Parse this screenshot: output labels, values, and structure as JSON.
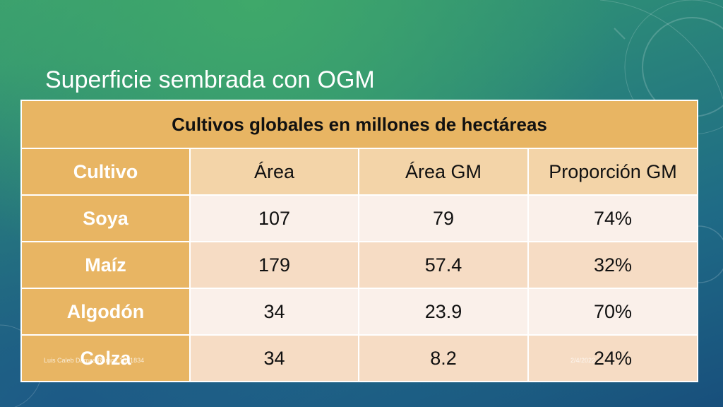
{
  "slide": {
    "title": "Superficie sembrada con OGM",
    "footer_left": "Luis Caleb Damas Ramos 1671834",
    "footer_right": "2/4/2022"
  },
  "table": {
    "caption": "Cultivos globales en millones de hectáreas",
    "headers": [
      "Cultivo",
      "Área",
      "Área GM",
      "Proporción GM"
    ],
    "rows": [
      {
        "crop": "Soya",
        "area": "107",
        "area_gm": "79",
        "proportion": "74%"
      },
      {
        "crop": "Maíz",
        "area": "179",
        "area_gm": "57.4",
        "proportion": "32%"
      },
      {
        "crop": "Algodón",
        "area": "34",
        "area_gm": "23.9",
        "proportion": "70%"
      },
      {
        "crop": "Colza",
        "area": "34",
        "area_gm": "8.2",
        "proportion": "24%"
      }
    ]
  },
  "colors": {
    "accent": "#e8b563",
    "header_cell": "#f3d4a8",
    "row_light": "#faf0ea",
    "row_dark": "#f6dcc4"
  }
}
